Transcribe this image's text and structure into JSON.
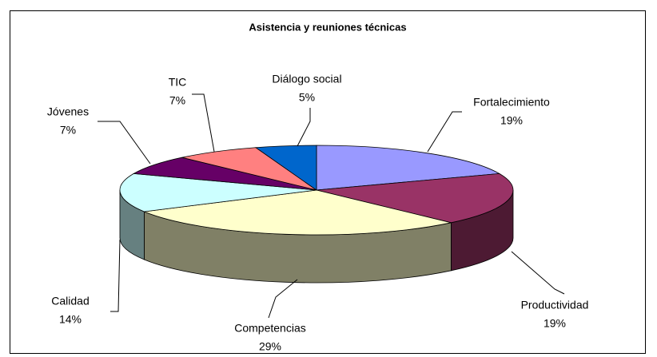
{
  "chart_data": {
    "type": "pie3d",
    "title": "Asistencia y reuniones técnicas",
    "categories": [
      "Fortalecimiento",
      "Productividad",
      "Competencias",
      "Calidad",
      "Jóvenes",
      "TIC",
      "Diálogo social"
    ],
    "values": [
      19,
      19,
      29,
      14,
      7,
      7,
      5
    ],
    "value_labels": [
      "19%",
      "19%",
      "29%",
      "14%",
      "7%",
      "7%",
      "5%"
    ],
    "colors": [
      "#9999FF",
      "#993366",
      "#FFFFCC",
      "#CCFFFF",
      "#660066",
      "#FF8080",
      "#0066CC"
    ]
  }
}
